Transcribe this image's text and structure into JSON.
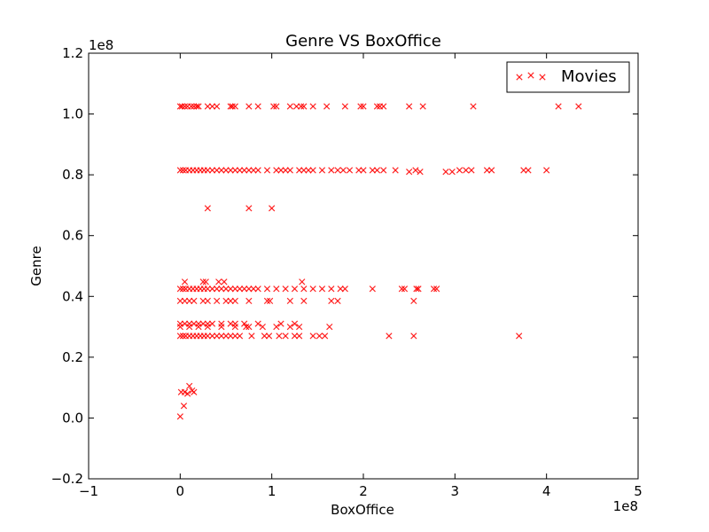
{
  "chart_data": {
    "type": "scatter",
    "title": "Genre VS BoxOffice",
    "xlabel": "BoxOffice",
    "ylabel": "Genre",
    "x_offset_label": "1e8",
    "y_offset_label": "1e8",
    "xlim": [
      -1,
      5
    ],
    "ylim": [
      -0.2,
      1.2
    ],
    "x_ticks": [
      -1,
      0,
      1,
      2,
      3,
      4,
      5
    ],
    "y_ticks": [
      -0.2,
      0.0,
      0.2,
      0.4,
      0.6,
      0.8,
      1.0,
      1.2
    ],
    "x_tick_labels": [
      "−1",
      "0",
      "1",
      "2",
      "3",
      "4",
      "5"
    ],
    "y_tick_labels": [
      "−0.2",
      "0.0",
      "0.2",
      "0.4",
      "0.6",
      "0.8",
      "1.0",
      "1.2"
    ],
    "grid": false,
    "legend_position": "top-right",
    "series": [
      {
        "name": "Movies",
        "color": "#ff0000",
        "marker": "x",
        "points": [
          [
            0.0,
            1.025
          ],
          [
            0.02,
            1.025
          ],
          [
            0.05,
            1.025
          ],
          [
            0.08,
            1.025
          ],
          [
            0.12,
            1.025
          ],
          [
            0.15,
            1.025
          ],
          [
            0.18,
            1.025
          ],
          [
            0.2,
            1.025
          ],
          [
            0.3,
            1.025
          ],
          [
            0.35,
            1.025
          ],
          [
            0.4,
            1.025
          ],
          [
            0.55,
            1.025
          ],
          [
            0.57,
            1.025
          ],
          [
            0.6,
            1.025
          ],
          [
            0.75,
            1.025
          ],
          [
            0.85,
            1.025
          ],
          [
            1.02,
            1.025
          ],
          [
            1.05,
            1.025
          ],
          [
            1.2,
            1.025
          ],
          [
            1.27,
            1.025
          ],
          [
            1.32,
            1.025
          ],
          [
            1.35,
            1.025
          ],
          [
            1.45,
            1.025
          ],
          [
            1.6,
            1.025
          ],
          [
            1.8,
            1.025
          ],
          [
            1.97,
            1.025
          ],
          [
            2.0,
            1.025
          ],
          [
            2.15,
            1.025
          ],
          [
            2.18,
            1.025
          ],
          [
            2.22,
            1.025
          ],
          [
            2.5,
            1.025
          ],
          [
            2.65,
            1.025
          ],
          [
            3.2,
            1.025
          ],
          [
            4.13,
            1.025
          ],
          [
            4.35,
            1.025
          ],
          [
            0.0,
            0.815
          ],
          [
            0.03,
            0.815
          ],
          [
            0.06,
            0.815
          ],
          [
            0.1,
            0.815
          ],
          [
            0.14,
            0.815
          ],
          [
            0.18,
            0.815
          ],
          [
            0.22,
            0.815
          ],
          [
            0.26,
            0.815
          ],
          [
            0.3,
            0.815
          ],
          [
            0.35,
            0.815
          ],
          [
            0.4,
            0.815
          ],
          [
            0.45,
            0.815
          ],
          [
            0.5,
            0.815
          ],
          [
            0.55,
            0.815
          ],
          [
            0.6,
            0.815
          ],
          [
            0.65,
            0.815
          ],
          [
            0.7,
            0.815
          ],
          [
            0.75,
            0.815
          ],
          [
            0.8,
            0.815
          ],
          [
            0.85,
            0.815
          ],
          [
            0.95,
            0.815
          ],
          [
            1.05,
            0.815
          ],
          [
            1.1,
            0.815
          ],
          [
            1.15,
            0.815
          ],
          [
            1.2,
            0.815
          ],
          [
            1.3,
            0.815
          ],
          [
            1.35,
            0.815
          ],
          [
            1.4,
            0.815
          ],
          [
            1.45,
            0.815
          ],
          [
            1.55,
            0.815
          ],
          [
            1.65,
            0.815
          ],
          [
            1.72,
            0.815
          ],
          [
            1.78,
            0.815
          ],
          [
            1.85,
            0.815
          ],
          [
            1.95,
            0.815
          ],
          [
            2.0,
            0.815
          ],
          [
            2.1,
            0.815
          ],
          [
            2.15,
            0.815
          ],
          [
            2.22,
            0.815
          ],
          [
            2.35,
            0.815
          ],
          [
            2.5,
            0.81
          ],
          [
            2.57,
            0.815
          ],
          [
            2.62,
            0.81
          ],
          [
            2.9,
            0.81
          ],
          [
            2.97,
            0.81
          ],
          [
            3.05,
            0.815
          ],
          [
            3.12,
            0.815
          ],
          [
            3.18,
            0.815
          ],
          [
            3.35,
            0.815
          ],
          [
            3.4,
            0.815
          ],
          [
            3.75,
            0.815
          ],
          [
            3.8,
            0.815
          ],
          [
            4.0,
            0.815
          ],
          [
            0.3,
            0.69
          ],
          [
            0.75,
            0.69
          ],
          [
            1.0,
            0.69
          ],
          [
            0.0,
            0.425
          ],
          [
            0.03,
            0.425
          ],
          [
            0.06,
            0.425
          ],
          [
            0.1,
            0.425
          ],
          [
            0.14,
            0.425
          ],
          [
            0.18,
            0.425
          ],
          [
            0.22,
            0.425
          ],
          [
            0.26,
            0.425
          ],
          [
            0.3,
            0.425
          ],
          [
            0.35,
            0.425
          ],
          [
            0.4,
            0.425
          ],
          [
            0.45,
            0.425
          ],
          [
            0.5,
            0.425
          ],
          [
            0.55,
            0.425
          ],
          [
            0.6,
            0.425
          ],
          [
            0.65,
            0.425
          ],
          [
            0.7,
            0.425
          ],
          [
            0.75,
            0.425
          ],
          [
            0.8,
            0.425
          ],
          [
            0.85,
            0.425
          ],
          [
            0.95,
            0.425
          ],
          [
            1.05,
            0.425
          ],
          [
            1.15,
            0.425
          ],
          [
            1.25,
            0.425
          ],
          [
            1.35,
            0.425
          ],
          [
            1.45,
            0.425
          ],
          [
            1.55,
            0.425
          ],
          [
            1.65,
            0.425
          ],
          [
            1.75,
            0.425
          ],
          [
            1.8,
            0.425
          ],
          [
            2.1,
            0.425
          ],
          [
            2.42,
            0.425
          ],
          [
            2.45,
            0.425
          ],
          [
            2.58,
            0.425
          ],
          [
            2.6,
            0.425
          ],
          [
            2.77,
            0.425
          ],
          [
            2.8,
            0.425
          ],
          [
            0.05,
            0.448
          ],
          [
            0.25,
            0.448
          ],
          [
            0.28,
            0.448
          ],
          [
            0.42,
            0.448
          ],
          [
            0.48,
            0.448
          ],
          [
            1.33,
            0.448
          ],
          [
            0.0,
            0.385
          ],
          [
            0.05,
            0.385
          ],
          [
            0.1,
            0.385
          ],
          [
            0.15,
            0.385
          ],
          [
            0.25,
            0.385
          ],
          [
            0.3,
            0.385
          ],
          [
            0.4,
            0.385
          ],
          [
            0.5,
            0.385
          ],
          [
            0.55,
            0.385
          ],
          [
            0.6,
            0.385
          ],
          [
            0.75,
            0.385
          ],
          [
            0.95,
            0.385
          ],
          [
            0.98,
            0.385
          ],
          [
            1.2,
            0.385
          ],
          [
            1.35,
            0.385
          ],
          [
            1.65,
            0.385
          ],
          [
            1.72,
            0.385
          ],
          [
            2.55,
            0.385
          ],
          [
            0.0,
            0.31
          ],
          [
            0.05,
            0.31
          ],
          [
            0.1,
            0.31
          ],
          [
            0.15,
            0.31
          ],
          [
            0.2,
            0.31
          ],
          [
            0.25,
            0.31
          ],
          [
            0.3,
            0.31
          ],
          [
            0.35,
            0.31
          ],
          [
            0.45,
            0.31
          ],
          [
            0.55,
            0.31
          ],
          [
            0.6,
            0.31
          ],
          [
            0.7,
            0.31
          ],
          [
            0.85,
            0.31
          ],
          [
            1.1,
            0.31
          ],
          [
            1.25,
            0.31
          ],
          [
            0.0,
            0.3
          ],
          [
            0.1,
            0.3
          ],
          [
            0.2,
            0.3
          ],
          [
            0.3,
            0.3
          ],
          [
            0.45,
            0.3
          ],
          [
            0.6,
            0.3
          ],
          [
            0.72,
            0.3
          ],
          [
            0.75,
            0.3
          ],
          [
            0.9,
            0.3
          ],
          [
            1.05,
            0.3
          ],
          [
            1.2,
            0.3
          ],
          [
            1.3,
            0.3
          ],
          [
            1.63,
            0.3
          ],
          [
            0.0,
            0.27
          ],
          [
            0.03,
            0.27
          ],
          [
            0.06,
            0.27
          ],
          [
            0.1,
            0.27
          ],
          [
            0.14,
            0.27
          ],
          [
            0.18,
            0.27
          ],
          [
            0.22,
            0.27
          ],
          [
            0.26,
            0.27
          ],
          [
            0.3,
            0.27
          ],
          [
            0.35,
            0.27
          ],
          [
            0.4,
            0.27
          ],
          [
            0.45,
            0.27
          ],
          [
            0.5,
            0.27
          ],
          [
            0.55,
            0.27
          ],
          [
            0.6,
            0.27
          ],
          [
            0.65,
            0.27
          ],
          [
            0.78,
            0.27
          ],
          [
            0.92,
            0.27
          ],
          [
            0.97,
            0.27
          ],
          [
            1.08,
            0.27
          ],
          [
            1.15,
            0.27
          ],
          [
            1.25,
            0.27
          ],
          [
            1.3,
            0.27
          ],
          [
            1.45,
            0.27
          ],
          [
            1.52,
            0.27
          ],
          [
            1.58,
            0.27
          ],
          [
            2.28,
            0.27
          ],
          [
            2.55,
            0.27
          ],
          [
            3.7,
            0.27
          ],
          [
            0.01,
            0.085
          ],
          [
            0.05,
            0.085
          ],
          [
            0.08,
            0.08
          ],
          [
            0.1,
            0.105
          ],
          [
            0.13,
            0.09
          ],
          [
            0.15,
            0.085
          ],
          [
            0.04,
            0.04
          ],
          [
            0.0,
            0.005
          ]
        ]
      }
    ]
  }
}
